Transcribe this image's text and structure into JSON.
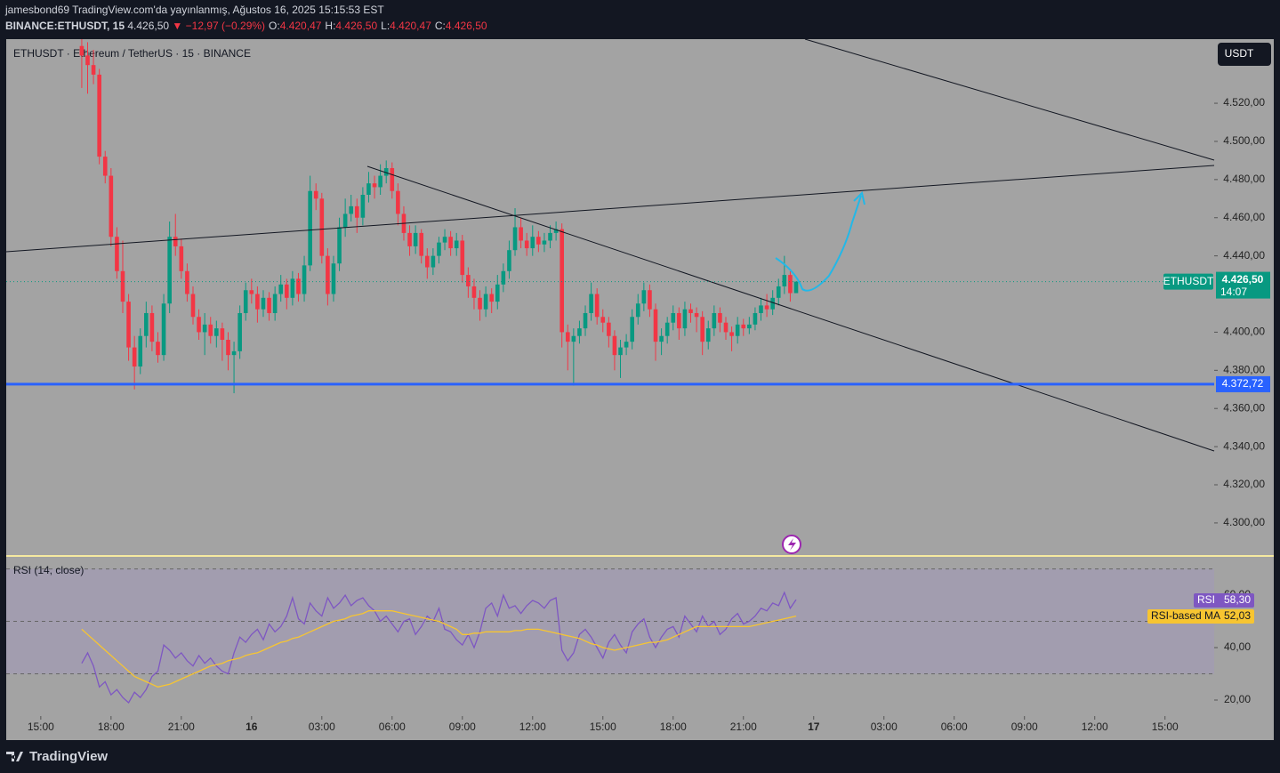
{
  "header": {
    "line1": "jamesbond69 TradingView.com'da yayınlanmış, Ağustos 16, 2025 15:15:53 EST",
    "symbol": "BINANCE:ETHUSDT, 15",
    "price": "4.426,50",
    "change": "▼ −12,97 (−0.29%)",
    "ohlc": [
      {
        "label": "O:",
        "value": "4.420,47"
      },
      {
        "label": "H:",
        "value": "4.426,50"
      },
      {
        "label": "L:",
        "value": "4.420,47"
      },
      {
        "label": "C:",
        "value": "4.426,50"
      }
    ]
  },
  "footer": "TradingView",
  "chart_data": [
    {
      "type": "candlestick",
      "title": "ETHUSDT · Ethereum / TetherUS · 15 · BINANCE",
      "currency": "USDT",
      "up_color": "#089981",
      "down_color": "#f23645",
      "candles": [
        [
          4550,
          4556,
          4528,
          4545
        ],
        [
          4545,
          4552,
          4525,
          4540
        ],
        [
          4540,
          4548,
          4530,
          4535
        ],
        [
          4535,
          4538,
          4488,
          4492
        ],
        [
          4492,
          4495,
          4478,
          4482
        ],
        [
          4482,
          4486,
          4445,
          4450
        ],
        [
          4450,
          4455,
          4428,
          4432
        ],
        [
          4432,
          4448,
          4410,
          4416
        ],
        [
          4416,
          4420,
          4385,
          4392
        ],
        [
          4392,
          4398,
          4370,
          4382
        ],
        [
          4382,
          4402,
          4378,
          4398
        ],
        [
          4398,
          4416,
          4392,
          4410
        ],
        [
          4410,
          4414,
          4390,
          4395
        ],
        [
          4395,
          4400,
          4384,
          4388
        ],
        [
          4388,
          4420,
          4385,
          4415
        ],
        [
          4415,
          4458,
          4410,
          4450
        ],
        [
          4450,
          4462,
          4440,
          4445
        ],
        [
          4445,
          4449,
          4428,
          4432
        ],
        [
          4432,
          4436,
          4416,
          4420
        ],
        [
          4420,
          4424,
          4404,
          4408
        ],
        [
          4408,
          4412,
          4396,
          4400
        ],
        [
          4400,
          4410,
          4388,
          4404
        ],
        [
          4404,
          4408,
          4394,
          4398
        ],
        [
          4398,
          4406,
          4392,
          4402
        ],
        [
          4402,
          4405,
          4385,
          4396
        ],
        [
          4396,
          4400,
          4380,
          4388
        ],
        [
          4388,
          4395,
          4368,
          4390
        ],
        [
          4390,
          4414,
          4386,
          4410
        ],
        [
          4410,
          4426,
          4406,
          4422
        ],
        [
          4422,
          4428,
          4415,
          4420
        ],
        [
          4420,
          4424,
          4405,
          4412
        ],
        [
          4412,
          4422,
          4408,
          4418
        ],
        [
          4418,
          4421,
          4406,
          4410
        ],
        [
          4410,
          4424,
          4406,
          4420
        ],
        [
          4420,
          4430,
          4416,
          4425
        ],
        [
          4425,
          4428,
          4412,
          4418
        ],
        [
          4418,
          4432,
          4414,
          4428
        ],
        [
          4428,
          4431,
          4416,
          4420
        ],
        [
          4420,
          4440,
          4416,
          4435
        ],
        [
          4435,
          4482,
          4432,
          4474
        ],
        [
          4474,
          4478,
          4464,
          4470
        ],
        [
          4470,
          4473,
          4436,
          4440
        ],
        [
          4440,
          4444,
          4414,
          4420
        ],
        [
          4420,
          4440,
          4416,
          4436
        ],
        [
          4436,
          4460,
          4432,
          4455
        ],
        [
          4455,
          4470,
          4450,
          4462
        ],
        [
          4462,
          4472,
          4458,
          4466
        ],
        [
          4466,
          4470,
          4452,
          4460
        ],
        [
          4460,
          4476,
          4456,
          4472
        ],
        [
          4472,
          4484,
          4468,
          4478
        ],
        [
          4478,
          4482,
          4470,
          4476
        ],
        [
          4476,
          4488,
          4472,
          4482
        ],
        [
          4482,
          4490,
          4478,
          4486
        ],
        [
          4486,
          4489,
          4470,
          4474
        ],
        [
          4474,
          4478,
          4456,
          4462
        ],
        [
          4462,
          4466,
          4448,
          4452
        ],
        [
          4452,
          4456,
          4440,
          4445
        ],
        [
          4445,
          4456,
          4441,
          4452
        ],
        [
          4452,
          4454,
          4436,
          4440
        ],
        [
          4440,
          4444,
          4428,
          4434
        ],
        [
          4434,
          4444,
          4430,
          4440
        ],
        [
          4440,
          4450,
          4436,
          4447
        ],
        [
          4447,
          4454,
          4443,
          4450
        ],
        [
          4450,
          4453,
          4440,
          4444
        ],
        [
          4444,
          4452,
          4440,
          4448
        ],
        [
          4448,
          4451,
          4426,
          4430
        ],
        [
          4430,
          4434,
          4418,
          4424
        ],
        [
          4424,
          4428,
          4412,
          4418
        ],
        [
          4418,
          4422,
          4406,
          4412
        ],
        [
          4412,
          4424,
          4408,
          4420
        ],
        [
          4420,
          4423,
          4410,
          4416
        ],
        [
          4416,
          4430,
          4412,
          4425
        ],
        [
          4425,
          4436,
          4421,
          4432
        ],
        [
          4432,
          4448,
          4428,
          4443
        ],
        [
          4443,
          4465,
          4440,
          4455
        ],
        [
          4455,
          4460,
          4444,
          4448
        ],
        [
          4448,
          4452,
          4440,
          4444
        ],
        [
          4444,
          4456,
          4440,
          4450
        ],
        [
          4450,
          4453,
          4442,
          4446
        ],
        [
          4446,
          4452,
          4442,
          4448
        ],
        [
          4448,
          4456,
          4444,
          4452
        ],
        [
          4452,
          4458,
          4448,
          4454
        ],
        [
          4454,
          4457,
          4392,
          4400
        ],
        [
          4400,
          4404,
          4380,
          4395
        ],
        [
          4395,
          4402,
          4372,
          4398
        ],
        [
          4398,
          4406,
          4394,
          4402
        ],
        [
          4402,
          4414,
          4398,
          4410
        ],
        [
          4410,
          4426,
          4406,
          4420
        ],
        [
          4420,
          4423,
          4404,
          4408
        ],
        [
          4408,
          4412,
          4400,
          4405
        ],
        [
          4405,
          4408,
          4392,
          4398
        ],
        [
          4398,
          4401,
          4380,
          4388
        ],
        [
          4388,
          4396,
          4376,
          4392
        ],
        [
          4392,
          4399,
          4388,
          4395
        ],
        [
          4395,
          4412,
          4391,
          4408
        ],
        [
          4408,
          4420,
          4404,
          4415
        ],
        [
          4415,
          4426,
          4411,
          4422
        ],
        [
          4422,
          4425,
          4408,
          4412
        ],
        [
          4412,
          4415,
          4385,
          4395
        ],
        [
          4395,
          4402,
          4388,
          4398
        ],
        [
          4398,
          4408,
          4394,
          4405
        ],
        [
          4405,
          4414,
          4401,
          4410
        ],
        [
          4410,
          4413,
          4396,
          4402
        ],
        [
          4402,
          4416,
          4398,
          4412
        ],
        [
          4412,
          4415,
          4405,
          4410
        ],
        [
          4410,
          4413,
          4400,
          4408
        ],
        [
          4408,
          4411,
          4388,
          4395
        ],
        [
          4395,
          4406,
          4391,
          4402
        ],
        [
          4402,
          4414,
          4398,
          4410
        ],
        [
          4410,
          4413,
          4400,
          4405
        ],
        [
          4405,
          4408,
          4396,
          4400
        ],
        [
          4400,
          4403,
          4390,
          4398
        ],
        [
          4398,
          4408,
          4394,
          4404
        ],
        [
          4404,
          4407,
          4398,
          4402
        ],
        [
          4402,
          4408,
          4399,
          4404
        ],
        [
          4404,
          4413,
          4401,
          4410
        ],
        [
          4410,
          4418,
          4406,
          4414
        ],
        [
          4414,
          4420,
          4408,
          4412
        ],
        [
          4412,
          4422,
          4409,
          4418
        ],
        [
          4418,
          4428,
          4414,
          4424
        ],
        [
          4424,
          4440,
          4420,
          4430
        ],
        [
          4430,
          4432,
          4416,
          4420.47
        ],
        [
          4420.47,
          4426.5,
          4420.47,
          4426.5
        ]
      ],
      "last_label": {
        "name": "ETHUSDT",
        "value": "4.426,50",
        "countdown": "14:07"
      },
      "hline": {
        "value": 4372.72,
        "label": "4.372,72",
        "color": "#2962ff"
      },
      "ylim": [
        4282.7,
        4553.6
      ],
      "yticks": [
        {
          "value": 4520,
          "label": "4.520,00"
        },
        {
          "value": 4500,
          "label": "4.500,00"
        },
        {
          "value": 4480,
          "label": "4.480,00"
        },
        {
          "value": 4460,
          "label": "4.460,00"
        },
        {
          "value": 4440,
          "label": "4.440,00"
        },
        {
          "value": 4400,
          "label": "4.400,00"
        },
        {
          "value": 4380,
          "label": "4.380,00"
        },
        {
          "value": 4360,
          "label": "4.360,00"
        },
        {
          "value": 4340,
          "label": "4.340,00"
        },
        {
          "value": 4320,
          "label": "4.320,00"
        },
        {
          "value": 4300,
          "label": "4.300,00"
        }
      ],
      "xlim": [
        -12.9,
        193.4
      ],
      "xticks": [
        {
          "value": -7,
          "label": "15:00"
        },
        {
          "value": 5,
          "label": "18:00"
        },
        {
          "value": 17,
          "label": "21:00"
        },
        {
          "value": 29,
          "label": "16"
        },
        {
          "value": 41,
          "label": "03:00"
        },
        {
          "value": 53,
          "label": "06:00"
        },
        {
          "value": 65,
          "label": "09:00"
        },
        {
          "value": 77,
          "label": "12:00"
        },
        {
          "value": 89,
          "label": "15:00"
        },
        {
          "value": 101,
          "label": "18:00"
        },
        {
          "value": 113,
          "label": "21:00"
        },
        {
          "value": 125,
          "label": "17"
        },
        {
          "value": 137,
          "label": "03:00"
        },
        {
          "value": 149,
          "label": "06:00"
        },
        {
          "value": 161,
          "label": "09:00"
        },
        {
          "value": 173,
          "label": "12:00"
        },
        {
          "value": 185,
          "label": "15:00"
        }
      ]
    },
    {
      "type": "line",
      "title": "RSI (14, close)",
      "bands": [
        70,
        50,
        30
      ],
      "series": [
        {
          "name": "RSI",
          "color": "#7e57c2",
          "value_labels": {
            "122": "58,30"
          },
          "values": [
            34,
            38,
            33,
            25,
            27,
            22,
            24,
            21,
            19,
            23,
            21,
            24,
            29,
            31,
            41,
            39,
            36,
            38,
            35,
            33,
            37,
            34,
            36,
            33,
            31,
            30,
            38,
            44,
            42,
            45,
            47,
            43,
            49,
            46,
            48,
            52,
            59,
            51,
            49,
            57,
            54,
            52,
            59,
            55,
            57,
            60,
            56,
            58,
            59,
            56,
            54,
            50,
            52,
            49,
            46,
            50,
            51,
            45,
            48,
            52,
            50,
            55,
            47,
            46,
            43,
            41,
            45,
            40,
            46,
            55,
            57,
            52,
            60,
            55,
            56,
            53,
            56,
            58,
            57,
            55,
            58,
            59,
            39,
            35,
            38,
            45,
            47,
            44,
            40,
            36,
            42,
            45,
            41,
            38,
            46,
            49,
            51,
            44,
            40,
            44,
            47,
            48,
            44,
            52,
            49,
            46,
            52,
            48,
            50,
            45,
            47,
            51,
            53,
            49,
            50,
            52,
            55,
            54,
            57,
            56,
            61,
            55,
            58.3
          ]
        },
        {
          "name": "RSI-based MA",
          "color": "#f7c531",
          "value_labels": {
            "122": "52,03"
          },
          "values": [
            47,
            45,
            43,
            41,
            39,
            37,
            35,
            33,
            31,
            29,
            28,
            27,
            26,
            25,
            25.5,
            26,
            27,
            28,
            29,
            30,
            31,
            32,
            33,
            33.5,
            34,
            35,
            35.5,
            36,
            37,
            37.6,
            38,
            39,
            40,
            41,
            42,
            42.5,
            43.5,
            44,
            45,
            46,
            47,
            48,
            49,
            50,
            50.5,
            51,
            52,
            52.5,
            53,
            54,
            54,
            54,
            54,
            54,
            53.5,
            53,
            52.5,
            52,
            51.5,
            51,
            50.5,
            50,
            49,
            48,
            47,
            45,
            45,
            45.5,
            45.5,
            46,
            46,
            46,
            46,
            46,
            46.5,
            46.5,
            47,
            47,
            47,
            46.5,
            46,
            45.5,
            45,
            44.5,
            44,
            43.5,
            42.5,
            41.5,
            41,
            40,
            39.5,
            39,
            39.5,
            40,
            40.5,
            41,
            41.5,
            42,
            42,
            42.5,
            43,
            44,
            45,
            46,
            47,
            48,
            48,
            48,
            48,
            48,
            48,
            48,
            48,
            48,
            48,
            48.5,
            49,
            49.5,
            50,
            50.5,
            51,
            51.5,
            52.03
          ]
        }
      ],
      "ylim": [
        13.9,
        74.6
      ],
      "yticks": [
        {
          "value": 60,
          "label": "60,00"
        },
        {
          "value": 40,
          "label": "40,00"
        },
        {
          "value": 20,
          "label": "20,00"
        }
      ]
    }
  ]
}
